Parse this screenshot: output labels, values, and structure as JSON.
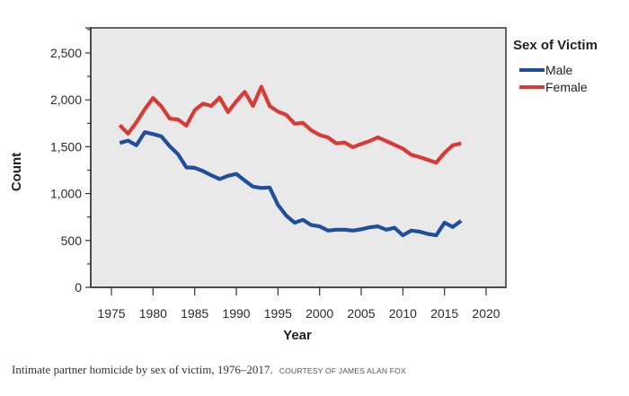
{
  "chart_data": {
    "type": "line",
    "title": "",
    "xlabel": "Year",
    "ylabel": "Count",
    "xlim": [
      1975,
      2020
    ],
    "ylim": [
      0,
      2500
    ],
    "x_ticks": [
      1975,
      1980,
      1985,
      1990,
      1995,
      2000,
      2005,
      2010,
      2015,
      2020
    ],
    "x_tick_labels": [
      "1975",
      "1980",
      "1985",
      "1990",
      "1995",
      "2000",
      "2005",
      "2010",
      "2015",
      "2020"
    ],
    "y_ticks": [
      0,
      500,
      1000,
      1500,
      2000,
      2500
    ],
    "y_tick_labels": [
      "0",
      "500",
      "1,000",
      "1,500",
      "2,000",
      "2,500"
    ],
    "grid": false,
    "legend": {
      "title": "Sex of Victim",
      "position": "right"
    },
    "x": [
      1976,
      1977,
      1978,
      1979,
      1980,
      1981,
      1982,
      1983,
      1984,
      1985,
      1986,
      1987,
      1988,
      1989,
      1990,
      1991,
      1992,
      1993,
      1994,
      1995,
      1996,
      1997,
      1998,
      1999,
      2000,
      2001,
      2002,
      2003,
      2004,
      2005,
      2006,
      2007,
      2008,
      2009,
      2010,
      2011,
      2012,
      2013,
      2014,
      2015,
      2016,
      2017
    ],
    "series": [
      {
        "name": "Male",
        "color": "#1f4e9c",
        "values": [
          1540,
          1565,
          1515,
          1655,
          1635,
          1610,
          1505,
          1420,
          1280,
          1275,
          1240,
          1195,
          1155,
          1190,
          1210,
          1140,
          1075,
          1060,
          1065,
          880,
          765,
          690,
          720,
          665,
          650,
          605,
          615,
          615,
          605,
          620,
          640,
          650,
          615,
          635,
          555,
          605,
          595,
          570,
          555,
          690,
          645,
          710
        ]
      },
      {
        "name": "Female",
        "color": "#d93a35",
        "values": [
          1730,
          1640,
          1760,
          1900,
          2020,
          1930,
          1800,
          1790,
          1725,
          1890,
          1960,
          1935,
          2025,
          1870,
          1985,
          2085,
          1935,
          2140,
          1935,
          1875,
          1840,
          1745,
          1755,
          1675,
          1625,
          1600,
          1535,
          1545,
          1495,
          1530,
          1560,
          1600,
          1560,
          1520,
          1480,
          1415,
          1390,
          1360,
          1330,
          1435,
          1515,
          1535
        ]
      }
    ]
  },
  "caption": {
    "text": "Intimate partner homicide by sex of victim, 1976–2017.",
    "credit": "COURTESY OF JAMES ALAN FOX"
  },
  "colors": {
    "plot_background": "#e9e9e9",
    "axis": "#333333"
  }
}
